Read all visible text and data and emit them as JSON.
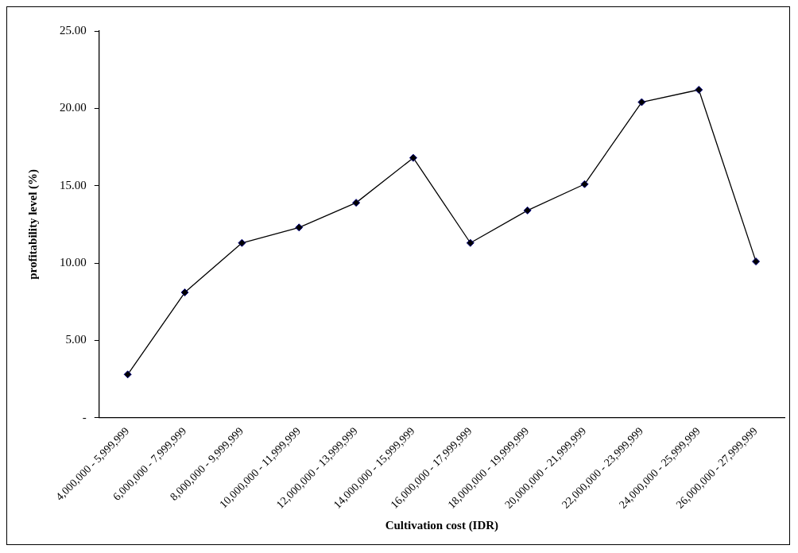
{
  "chart_data": {
    "type": "line",
    "xlabel": "Cultivation cost (IDR)",
    "ylabel": "profitability level (%)",
    "categories": [
      "4,000,000 - 5,999,999",
      "6,000,000 - 7,999,999",
      "8,000,000 - 9,999,999",
      "10,000,000 - 11,999,999",
      "12,000,000 - 13,999,999",
      "14,000,000 - 15,999,999",
      "16,000,000 - 17,999,999",
      "18,000,000 - 19,999,999",
      "20,000,000 - 21,999,999",
      "22,000,000 - 23,999,999",
      "24,000,000 - 25,999,999",
      "26,000,000 - 27,999,999"
    ],
    "series": [
      {
        "color": "#000000",
        "values": [
          2.8,
          8.1,
          11.3,
          12.3,
          13.9,
          16.8,
          11.3,
          13.4,
          15.1,
          20.4,
          21.2,
          10.1
        ]
      }
    ],
    "ylim": [
      0,
      25
    ],
    "yticks": [
      {
        "value": 0,
        "label": "-"
      },
      {
        "value": 5,
        "label": "5.00"
      },
      {
        "value": 10,
        "label": "10.00"
      },
      {
        "value": 15,
        "label": "15.00"
      },
      {
        "value": 20,
        "label": "20.00"
      },
      {
        "value": 25,
        "label": "25.00"
      }
    ],
    "grid": false,
    "legend": false,
    "marker": "diamond",
    "line_style": "solid"
  }
}
